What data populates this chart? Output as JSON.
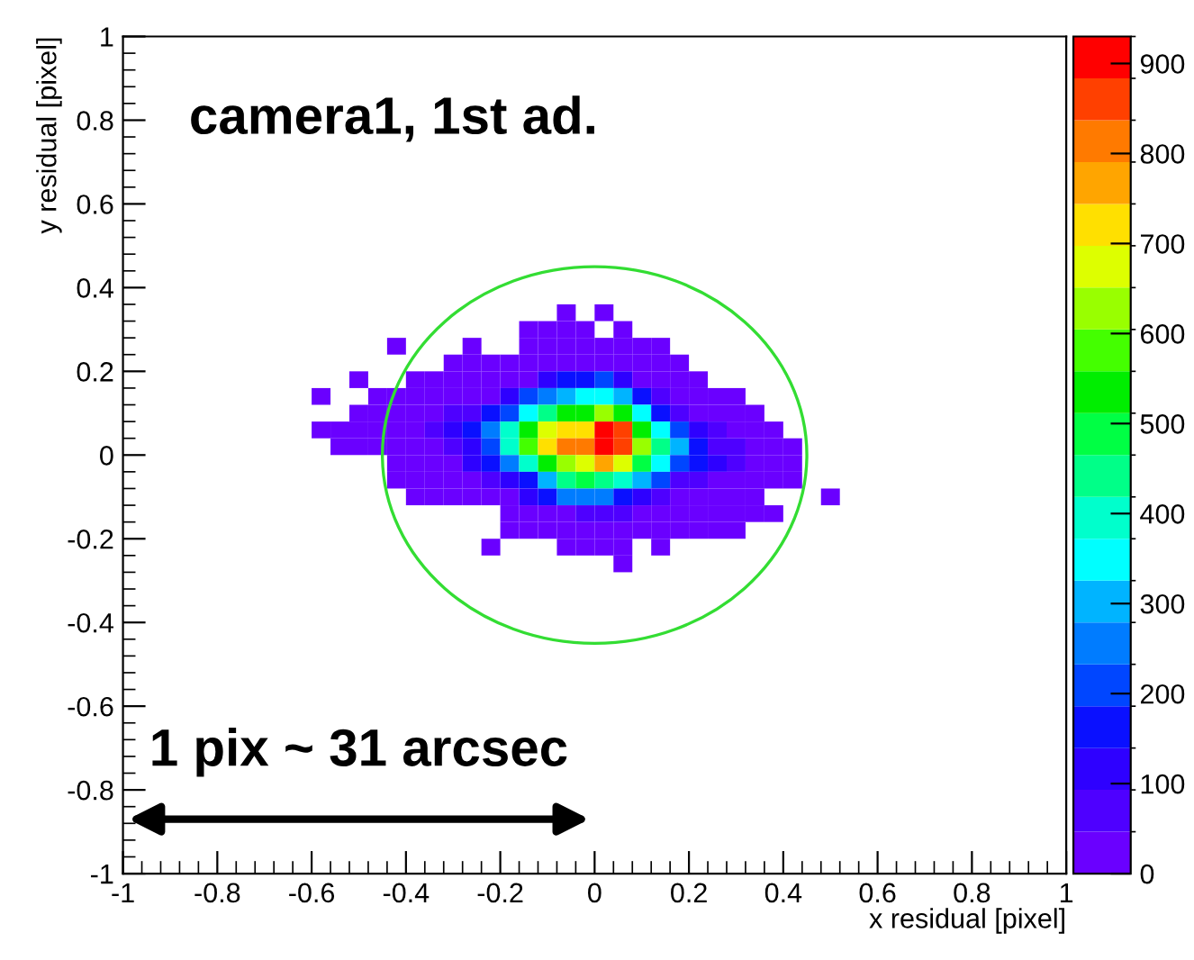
{
  "chart_data": {
    "type": "scatter",
    "marker": "square",
    "annotations": [
      "camera1, 1st ad.",
      "1 pix ~ 31 arcsec"
    ],
    "xlabel": "x residual [pixel]",
    "ylabel": "y residual [pixel]",
    "xlim": [
      -1,
      1
    ],
    "ylim": [
      -1,
      1
    ],
    "xticks": [
      -1,
      -0.8,
      -0.6,
      -0.4,
      -0.2,
      0,
      0.2,
      0.4,
      0.6,
      0.8,
      1
    ],
    "yticks": [
      -1,
      -0.8,
      -0.6,
      -0.4,
      -0.2,
      0,
      0.2,
      0.4,
      0.6,
      0.8,
      1
    ],
    "clim": [
      0,
      930
    ],
    "cticks": [
      0,
      100,
      200,
      300,
      400,
      500,
      600,
      700,
      800,
      900
    ],
    "x": [
      -0.06,
      0.02,
      -0.14,
      -0.1,
      -0.06,
      -0.02,
      0.06,
      -0.42,
      -0.26,
      -0.14,
      -0.1,
      -0.06,
      -0.02,
      0.02,
      0.06,
      0.1,
      0.14,
      -0.3,
      -0.26,
      -0.22,
      -0.18,
      -0.14,
      -0.1,
      -0.06,
      -0.02,
      0.02,
      0.06,
      0.1,
      0.14,
      0.18,
      -0.5,
      -0.38,
      -0.34,
      -0.3,
      -0.26,
      -0.22,
      -0.18,
      -0.14,
      -0.1,
      -0.06,
      -0.02,
      0.02,
      0.06,
      0.1,
      0.14,
      0.18,
      0.22,
      -0.58,
      -0.46,
      -0.42,
      -0.38,
      -0.34,
      -0.3,
      -0.26,
      -0.22,
      -0.18,
      -0.14,
      -0.1,
      -0.06,
      -0.02,
      0.02,
      0.06,
      0.1,
      0.14,
      0.18,
      0.22,
      0.26,
      0.3,
      -0.5,
      -0.46,
      -0.42,
      -0.38,
      -0.34,
      -0.3,
      -0.26,
      -0.22,
      -0.18,
      -0.14,
      -0.1,
      -0.06,
      -0.02,
      0.02,
      0.06,
      0.1,
      0.14,
      0.18,
      0.22,
      0.26,
      0.3,
      0.34,
      -0.58,
      -0.54,
      -0.5,
      -0.46,
      -0.42,
      -0.38,
      -0.34,
      -0.3,
      -0.26,
      -0.22,
      -0.18,
      -0.14,
      -0.1,
      -0.06,
      -0.02,
      0.02,
      0.06,
      0.1,
      0.14,
      0.18,
      0.22,
      0.26,
      0.3,
      0.34,
      0.38,
      -0.54,
      -0.5,
      -0.46,
      -0.42,
      -0.38,
      -0.34,
      -0.3,
      -0.26,
      -0.22,
      -0.18,
      -0.14,
      -0.1,
      -0.06,
      -0.02,
      0.02,
      0.06,
      0.1,
      0.14,
      0.18,
      0.22,
      0.26,
      0.3,
      0.34,
      0.38,
      0.42,
      -0.42,
      -0.38,
      -0.34,
      -0.3,
      -0.26,
      -0.22,
      -0.18,
      -0.14,
      -0.1,
      -0.06,
      -0.02,
      0.02,
      0.06,
      0.1,
      0.14,
      0.18,
      0.22,
      0.26,
      0.3,
      0.34,
      0.38,
      0.42,
      -0.42,
      -0.38,
      -0.34,
      -0.3,
      -0.26,
      -0.22,
      -0.18,
      -0.14,
      -0.1,
      -0.06,
      -0.02,
      0.02,
      0.06,
      0.1,
      0.14,
      0.18,
      0.22,
      0.26,
      0.3,
      0.34,
      0.38,
      0.42,
      -0.38,
      -0.34,
      -0.3,
      -0.26,
      -0.22,
      -0.18,
      -0.14,
      -0.1,
      -0.06,
      -0.02,
      0.02,
      0.06,
      0.1,
      0.14,
      0.18,
      0.22,
      0.26,
      0.3,
      0.34,
      0.5,
      -0.18,
      -0.14,
      -0.1,
      -0.06,
      -0.02,
      0.02,
      0.06,
      0.1,
      0.14,
      0.18,
      0.22,
      0.26,
      0.3,
      0.34,
      0.38,
      -0.18,
      -0.14,
      -0.1,
      -0.06,
      -0.02,
      0.02,
      0.06,
      0.1,
      0.14,
      0.18,
      0.22,
      0.26,
      0.3,
      -0.22,
      -0.06,
      -0.02,
      0.02,
      0.06,
      0.14,
      0.06
    ],
    "values": [
      0.34,
      0.34,
      0.3,
      0.3,
      0.3,
      0.3,
      0.3,
      0.26,
      0.26,
      0.26,
      0.26,
      0.26,
      0.26,
      0.26,
      0.26,
      0.26,
      0.26,
      0.22,
      0.22,
      0.22,
      0.22,
      0.22,
      0.22,
      0.22,
      0.22,
      0.22,
      0.22,
      0.22,
      0.22,
      0.22,
      0.18,
      0.18,
      0.18,
      0.18,
      0.18,
      0.18,
      0.18,
      0.18,
      0.18,
      0.18,
      0.18,
      0.18,
      0.18,
      0.18,
      0.18,
      0.18,
      0.18,
      0.14,
      0.14,
      0.14,
      0.14,
      0.14,
      0.14,
      0.14,
      0.14,
      0.14,
      0.14,
      0.14,
      0.14,
      0.14,
      0.14,
      0.14,
      0.14,
      0.14,
      0.14,
      0.14,
      0.14,
      0.14,
      0.1,
      0.1,
      0.1,
      0.1,
      0.1,
      0.1,
      0.1,
      0.1,
      0.1,
      0.1,
      0.1,
      0.1,
      0.1,
      0.1,
      0.1,
      0.1,
      0.1,
      0.1,
      0.1,
      0.1,
      0.1,
      0.1,
      0.06,
      0.06,
      0.06,
      0.06,
      0.06,
      0.06,
      0.06,
      0.06,
      0.06,
      0.06,
      0.06,
      0.06,
      0.06,
      0.06,
      0.06,
      0.06,
      0.06,
      0.06,
      0.06,
      0.06,
      0.06,
      0.06,
      0.06,
      0.06,
      0.06,
      0.02,
      0.02,
      0.02,
      0.02,
      0.02,
      0.02,
      0.02,
      0.02,
      0.02,
      0.02,
      0.02,
      0.02,
      0.02,
      0.02,
      0.02,
      0.02,
      0.02,
      0.02,
      0.02,
      0.02,
      0.02,
      0.02,
      0.02,
      0.02,
      0.02,
      -0.02,
      -0.02,
      -0.02,
      -0.02,
      -0.02,
      -0.02,
      -0.02,
      -0.02,
      -0.02,
      -0.02,
      -0.02,
      -0.02,
      -0.02,
      -0.02,
      -0.02,
      -0.02,
      -0.02,
      -0.02,
      -0.02,
      -0.02,
      -0.02,
      -0.02,
      -0.06,
      -0.06,
      -0.06,
      -0.06,
      -0.06,
      -0.06,
      -0.06,
      -0.06,
      -0.06,
      -0.06,
      -0.06,
      -0.06,
      -0.06,
      -0.06,
      -0.06,
      -0.06,
      -0.06,
      -0.06,
      -0.06,
      -0.06,
      -0.06,
      -0.06,
      -0.1,
      -0.1,
      -0.1,
      -0.1,
      -0.1,
      -0.1,
      -0.1,
      -0.1,
      -0.1,
      -0.1,
      -0.1,
      -0.1,
      -0.1,
      -0.1,
      -0.1,
      -0.1,
      -0.1,
      -0.1,
      -0.1,
      -0.1,
      -0.14,
      -0.14,
      -0.14,
      -0.14,
      -0.14,
      -0.14,
      -0.14,
      -0.14,
      -0.14,
      -0.14,
      -0.14,
      -0.14,
      -0.14,
      -0.14,
      -0.14,
      -0.18,
      -0.18,
      -0.18,
      -0.18,
      -0.18,
      -0.18,
      -0.18,
      -0.18,
      -0.18,
      -0.18,
      -0.18,
      -0.18,
      -0.18,
      -0.22,
      -0.22,
      -0.22,
      -0.22,
      -0.22,
      -0.22,
      -0.26
    ],
    "cvalues": [
      20,
      20,
      20,
      20,
      20,
      20,
      20,
      20,
      20,
      20,
      20,
      20,
      20,
      20,
      20,
      20,
      20,
      20,
      20,
      20,
      20,
      20,
      20,
      20,
      20,
      20,
      20,
      20,
      20,
      20,
      20,
      20,
      20,
      20,
      20,
      20,
      20,
      20,
      115,
      160,
      160,
      210,
      115,
      20,
      20,
      20,
      20,
      20,
      20,
      20,
      20,
      20,
      20,
      20,
      20,
      115,
      210,
      255,
      300,
      350,
      350,
      300,
      160,
      70,
      20,
      20,
      20,
      20,
      20,
      20,
      20,
      20,
      20,
      70,
      70,
      160,
      210,
      350,
      440,
      535,
      535,
      625,
      535,
      350,
      160,
      70,
      20,
      20,
      20,
      20,
      20,
      20,
      20,
      20,
      20,
      20,
      70,
      115,
      160,
      255,
      395,
      535,
      675,
      720,
      720,
      905,
      860,
      535,
      350,
      210,
      115,
      70,
      20,
      20,
      20,
      20,
      20,
      20,
      20,
      20,
      20,
      70,
      115,
      210,
      395,
      580,
      720,
      815,
      815,
      905,
      860,
      625,
      440,
      300,
      160,
      70,
      70,
      20,
      20,
      20,
      20,
      20,
      20,
      20,
      115,
      160,
      255,
      395,
      535,
      625,
      675,
      770,
      675,
      490,
      350,
      210,
      160,
      115,
      70,
      20,
      20,
      20,
      20,
      20,
      20,
      20,
      20,
      70,
      115,
      160,
      300,
      440,
      490,
      440,
      395,
      300,
      210,
      70,
      70,
      20,
      20,
      20,
      20,
      20,
      20,
      20,
      20,
      20,
      20,
      20,
      115,
      160,
      255,
      255,
      255,
      160,
      115,
      70,
      20,
      20,
      20,
      20,
      20,
      20,
      20,
      20,
      20,
      20,
      70,
      70,
      70,
      20,
      20,
      20,
      20,
      20,
      20,
      20,
      20,
      20,
      20,
      20,
      20,
      20,
      20,
      20,
      20,
      20,
      20,
      20,
      20,
      20,
      20,
      20,
      20,
      20,
      20,
      20,
      20
    ]
  }
}
